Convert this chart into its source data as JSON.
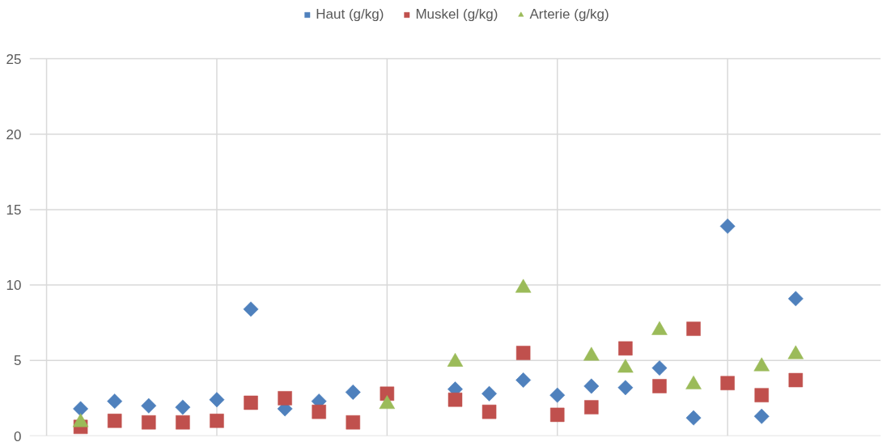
{
  "chart_data": {
    "type": "scatter",
    "categories": [
      null,
      null,
      null,
      null,
      null,
      null,
      null,
      null,
      null,
      null,
      null,
      null,
      null,
      null,
      null,
      null,
      null,
      null,
      null,
      null,
      null,
      null,
      null,
      null,
      null
    ],
    "ylim": [
      0,
      25
    ],
    "yticks": [
      0,
      5,
      10,
      15,
      20,
      25
    ],
    "tick_labels": "y",
    "grid": true,
    "legend": "top",
    "series": [
      {
        "name": "Haut (g/kg)",
        "color": "#4f81bd",
        "marker": "diamond",
        "values": [
          null,
          1.8,
          2.3,
          2.0,
          1.9,
          2.4,
          8.4,
          1.8,
          2.3,
          2.9,
          null,
          null,
          3.1,
          2.8,
          3.7,
          2.7,
          3.3,
          3.2,
          4.5,
          1.2,
          13.9,
          1.3,
          9.1,
          null,
          null
        ]
      },
      {
        "name": "Muskel (g/kg)",
        "color": "#c0504d",
        "marker": "square",
        "values": [
          null,
          0.6,
          1.0,
          0.9,
          0.9,
          1.0,
          2.2,
          2.5,
          1.6,
          0.9,
          2.8,
          null,
          2.4,
          1.6,
          5.5,
          1.4,
          1.9,
          5.8,
          3.3,
          7.1,
          3.5,
          2.7,
          3.7,
          null,
          null
        ]
      },
      {
        "name": "Arterie (g/kg)",
        "color": "#9bbb59",
        "marker": "triangle",
        "values": [
          null,
          0.9,
          null,
          null,
          null,
          null,
          null,
          null,
          null,
          null,
          2.1,
          null,
          4.9,
          null,
          9.8,
          null,
          5.3,
          4.5,
          7.0,
          3.4,
          null,
          4.6,
          5.4,
          null,
          null
        ]
      }
    ]
  }
}
